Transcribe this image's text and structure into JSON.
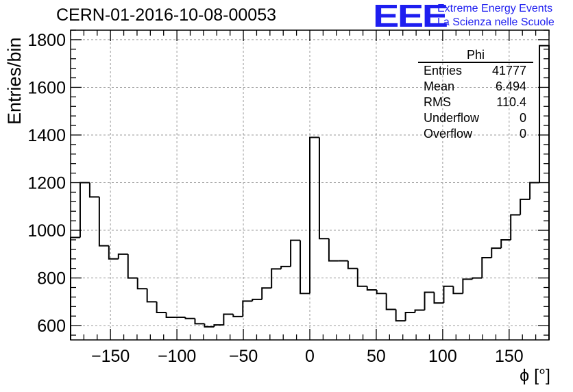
{
  "chart_data": {
    "type": "histogram",
    "title": "CERN-01-2016-10-08-00053",
    "xlabel": "ϕ [°]",
    "ylabel": "Entries/bin",
    "xlim": [
      -180,
      180
    ],
    "ylim": [
      540,
      1840
    ],
    "xticks": [
      -150,
      -100,
      -50,
      0,
      50,
      100,
      150
    ],
    "xtick_labels": [
      "−150",
      "−100",
      "−50",
      "0",
      "50",
      "100",
      "150"
    ],
    "yticks": [
      600,
      800,
      1000,
      1200,
      1400,
      1600,
      1800
    ],
    "ytick_labels": [
      "600",
      "800",
      "1000",
      "1200",
      "1400",
      "1600",
      "1800"
    ],
    "grid": true,
    "bin_width": 7.2,
    "x_start": -180,
    "values": [
      970,
      1200,
      1140,
      935,
      880,
      900,
      800,
      755,
      700,
      655,
      635,
      635,
      630,
      608,
      595,
      603,
      648,
      638,
      703,
      710,
      758,
      838,
      848,
      958,
      735,
      1390,
      965,
      872,
      872,
      840,
      765,
      750,
      735,
      668,
      620,
      655,
      665,
      740,
      695,
      765,
      735,
      795,
      800,
      885,
      925,
      960,
      1065,
      1130,
      1200,
      1775
    ],
    "stats": {
      "name": "Phi",
      "entries_label": "Entries",
      "entries": "41777",
      "mean_label": "Mean",
      "mean": "6.494",
      "rms_label": "RMS",
      "rms": "110.4",
      "underflow_label": "Underflow",
      "underflow": "0",
      "overflow_label": "Overflow",
      "overflow": "0"
    }
  },
  "logo": {
    "mark": "EEE",
    "line1": "Extreme Energy Events",
    "line2": "La Scienza nelle Scuole",
    "color": "#1e1ef0"
  }
}
